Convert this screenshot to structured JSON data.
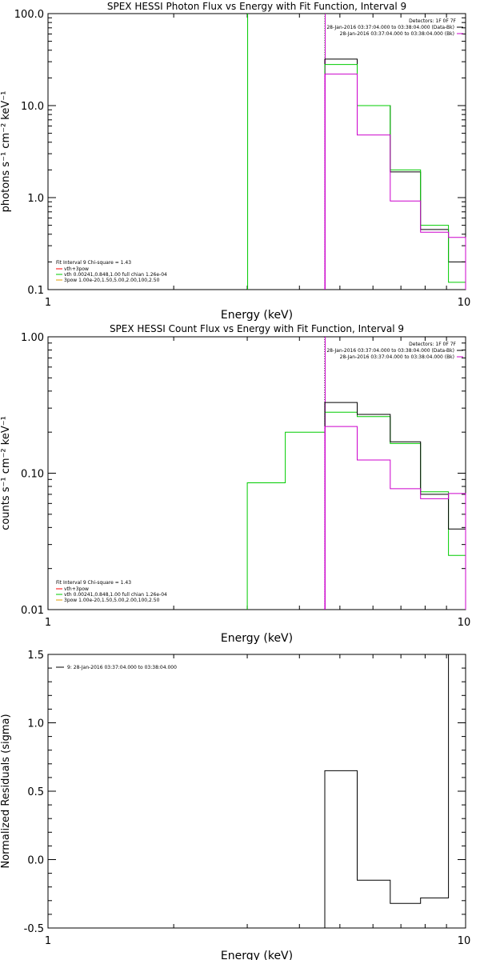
{
  "chart_data": [
    {
      "type": "line",
      "title": "SPEX HESSI Photon Flux vs Energy with Fit Function, Interval 9",
      "xlabel": "Energy (keV)",
      "ylabel": "photons s⁻¹ cm⁻² keV⁻¹",
      "xscale": "log",
      "yscale": "log",
      "xlim": [
        1,
        10
      ],
      "ylim": [
        0.1,
        100
      ],
      "xticks": [
        "1",
        "10"
      ],
      "yticks": [
        "0.1",
        "1.0",
        "10.0",
        "100.0"
      ],
      "header": {
        "detectors": "Detectors: 1F 0F 7F",
        "line1": "28-Jan-2016 03:37:04.000 to 03:38:04.000 (Data-Bk)",
        "line2": "28-Jan-2016 03:37:04.000 to 03:38:04.000 (Bk)"
      },
      "legend": {
        "fit_line": "Fit Interval 9   Chi-square = 1.43",
        "entries": [
          "vth+3pow",
          "vth 0.00241,0.848,1.00  full chian 1.26e-04",
          "3pow 1.00e-20,1.50,5.00,2.00,100,2.50"
        ],
        "colors": [
          "#ff0000",
          "#00cc00",
          "#e0a000"
        ]
      },
      "vlines": [
        {
          "x": 3.0,
          "color": "#00cc00",
          "style": "solid"
        },
        {
          "x": 4.6,
          "color": "#00cc00",
          "style": "dotted"
        },
        {
          "x": 4.6,
          "color": "#cc00cc",
          "style": "solid"
        }
      ],
      "edges": [
        4.6,
        5.5,
        6.6,
        7.8,
        9.1,
        10.0
      ],
      "series": [
        {
          "color": "#000000",
          "values": [
            32,
            10,
            1.9,
            0.45,
            0.2
          ]
        },
        {
          "color": "#00cc00",
          "values": [
            28,
            10,
            2.0,
            0.5,
            0.12
          ]
        },
        {
          "color": "#cc00cc",
          "values": [
            22,
            4.8,
            0.92,
            0.42,
            0.37
          ]
        }
      ]
    },
    {
      "type": "line",
      "title": "SPEX HESSI Count Flux vs Energy with Fit Function, Interval 9",
      "xlabel": "Energy (keV)",
      "ylabel": "counts s⁻¹ cm⁻² keV⁻¹",
      "xscale": "log",
      "yscale": "log",
      "xlim": [
        1,
        10
      ],
      "ylim": [
        0.01,
        1
      ],
      "xticks": [
        "1",
        "10"
      ],
      "yticks": [
        "0.01",
        "0.10",
        "1.00"
      ],
      "header": {
        "detectors": "Detectors: 1F 0F 7F",
        "line1": "28-Jan-2016 03:37:04.000 to 03:38:04.000 (Data-Bk)",
        "line2": "28-Jan-2016 03:37:04.000 to 03:38:04.000 (Bk)"
      },
      "legend": {
        "fit_line": "Fit Interval 9   Chi-square = 1.43",
        "entries": [
          "vth+3pow",
          "vth 0.00241,0.848,1.00  full chian 1.26e-04",
          "3pow 1.00e-20,1.50,5.00,2.00,100,2.50"
        ],
        "colors": [
          "#ff0000",
          "#00cc00",
          "#e0a000"
        ]
      },
      "vlines": [
        {
          "x": 4.6,
          "color": "#000000",
          "style": "dotted"
        },
        {
          "x": 4.6,
          "color": "#cc00cc",
          "style": "solid"
        }
      ],
      "green_edges": [
        3.0,
        3.7,
        4.6,
        5.5,
        6.6,
        7.8,
        9.1,
        10.0
      ],
      "green_values": [
        0.085,
        0.2,
        0.28,
        0.26,
        0.165,
        0.073,
        0.025
      ],
      "edges": [
        4.6,
        5.5,
        6.6,
        7.8,
        9.1,
        10.0
      ],
      "series": [
        {
          "color": "#000000",
          "values": [
            0.33,
            0.27,
            0.17,
            0.07,
            0.039
          ]
        },
        {
          "color": "#cc00cc",
          "values": [
            0.22,
            0.125,
            0.077,
            0.065,
            0.071
          ]
        }
      ]
    },
    {
      "type": "line",
      "title": "",
      "xlabel": "Energy (keV)",
      "ylabel": "Normalized Residuals (sigma)",
      "xscale": "log",
      "yscale": "linear",
      "xlim": [
        1,
        10
      ],
      "ylim": [
        -0.5,
        1.5
      ],
      "xticks": [
        "1",
        "10"
      ],
      "yticks": [
        "-0.5",
        "0.0",
        "0.5",
        "1.0",
        "1.5"
      ],
      "legend": {
        "entries": [
          "9: 28-Jan-2016 03:37:04.000 to 03:38:04.000"
        ],
        "colors": [
          "#000000"
        ]
      },
      "edges": [
        4.6,
        5.5,
        6.6,
        7.8,
        9.1,
        10.0
      ],
      "series": [
        {
          "color": "#000000",
          "values": [
            0.65,
            -0.15,
            -0.32,
            -0.28,
            1.5
          ]
        }
      ]
    }
  ]
}
